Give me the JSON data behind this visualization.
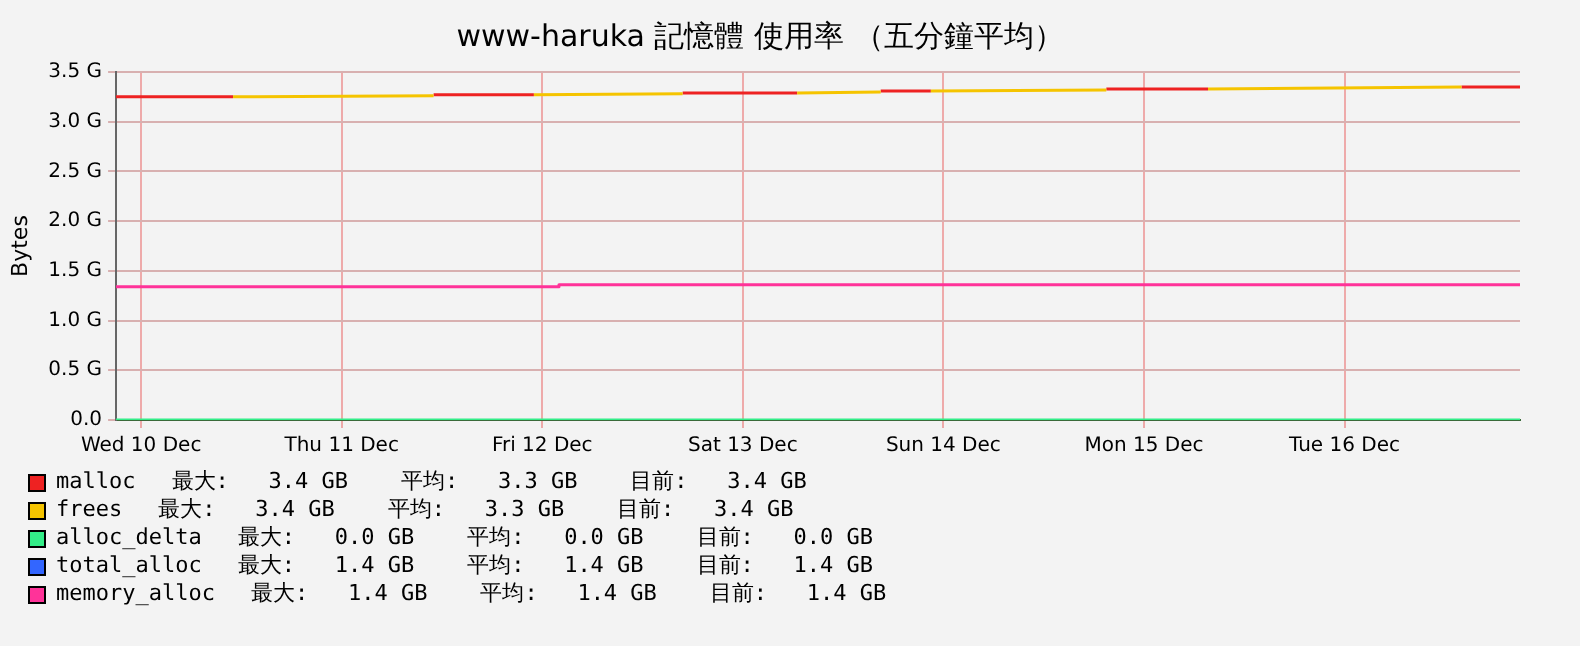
{
  "chart_data": {
    "type": "line",
    "title": "www-haruka 記憶體 使用率 （五分鐘平均）",
    "ylabel": "Bytes",
    "xlim": [
      "--12-09T21:00",
      "--12-16T21:00"
    ],
    "xticks": [
      {
        "value": "--12-10",
        "label": "Wed 10 Dec"
      },
      {
        "value": "--12-11",
        "label": "Thu 11 Dec"
      },
      {
        "value": "--12-12",
        "label": "Fri 12 Dec"
      },
      {
        "value": "--12-13",
        "label": "Sat 13 Dec"
      },
      {
        "value": "--12-14",
        "label": "Sun 14 Dec"
      },
      {
        "value": "--12-15",
        "label": "Mon 15 Dec"
      },
      {
        "value": "--12-16",
        "label": "Tue 16 Dec"
      }
    ],
    "ylim": [
      0,
      3.5
    ],
    "yticks": [
      {
        "value": 0,
        "label": "0.0"
      },
      {
        "value": 0.5,
        "label": "0.5 G"
      },
      {
        "value": 1,
        "label": "1.0 G"
      },
      {
        "value": 1.5,
        "label": "1.5 G"
      },
      {
        "value": 2,
        "label": "2.0 G"
      },
      {
        "value": 2.5,
        "label": "2.5 G"
      },
      {
        "value": 3,
        "label": "3.0 G"
      },
      {
        "value": 3.5,
        "label": "3.5 G"
      }
    ],
    "grid": true,
    "legend": "bottom",
    "marker": "none",
    "line_style": "solid",
    "series": [
      {
        "name": "malloc",
        "color": "#ee2222",
        "x": [
          "--12-09T21:00",
          "--12-10T11:00",
          "--12-10T12:00",
          "--12-11T11:00",
          "--12-11T23:00",
          "--12-12T12:00",
          "--12-12T16:48",
          "--12-13T06:30",
          "--12-13T12:00",
          "--12-13T16:30",
          "--12-13T22:30",
          "--12-14T12:00",
          "--12-14T19:30",
          "--12-15T07:40",
          "--12-15T12:00",
          "--12-16T14:00",
          "--12-16T21:00"
        ],
        "values": [
          3.25,
          3.25,
          null,
          3.27,
          3.27,
          null,
          3.29,
          3.29,
          null,
          3.31,
          3.31,
          null,
          3.33,
          3.33,
          null,
          3.35,
          3.35
        ]
      },
      {
        "name": "frees",
        "color": "#f5c400",
        "x": [
          "--12-10T11:00",
          "--12-11T11:00",
          "--12-11T17:00",
          "--12-11T23:00",
          "--12-12T16:48",
          "--12-13T00:00",
          "--12-13T06:30",
          "--12-13T16:30",
          "--12-13T19:00",
          "--12-13T22:30",
          "--12-14T19:30",
          "--12-15T00:00",
          "--12-15T07:40",
          "--12-16T14:00"
        ],
        "values": [
          3.25,
          3.26,
          null,
          3.27,
          3.28,
          null,
          3.29,
          3.3,
          null,
          3.31,
          3.32,
          null,
          3.33,
          3.35
        ]
      },
      {
        "name": "alloc_delta",
        "color": "#33ee88",
        "x": [
          "--12-09T21:00",
          "--12-16T21:00"
        ],
        "values": [
          0,
          0
        ]
      },
      {
        "name": "total_alloc",
        "color": "#3366ff"
      },
      {
        "name": "memory_alloc",
        "color": "#ff3399",
        "x": [
          "--12-09T21:00",
          "--12-12T02:00",
          "--12-12T02:00",
          "--12-16T21:00"
        ],
        "values": [
          1.34,
          1.34,
          1.36,
          1.36
        ]
      }
    ],
    "annotations": [
      "最大:   3.4 GB    平均:   3.3 GB    目前:   3.4 GB",
      "最大:   3.4 GB    平均:   3.3 GB    目前:   3.4 GB",
      "最大:   0.0 GB    平均:   0.0 GB    目前:   0.0 GB",
      "最大:   1.4 GB    平均:   1.4 GB    目前:   1.4 GB",
      "最大:   1.4 GB    平均:   1.4 GB    目前:   1.4 GB"
    ]
  }
}
